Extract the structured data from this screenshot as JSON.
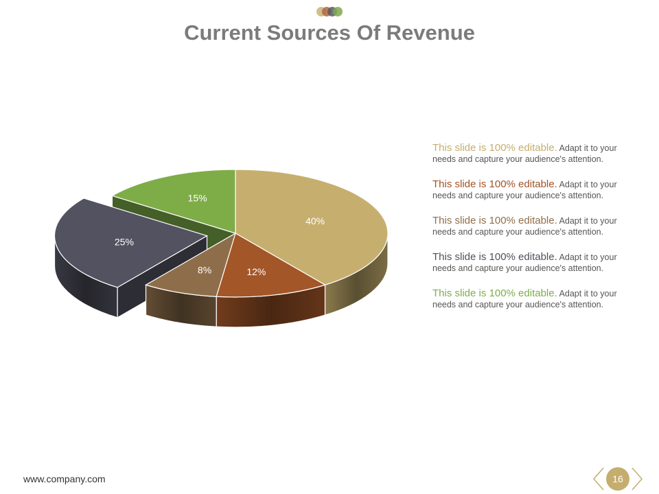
{
  "header": {
    "title": "Current Sources Of Revenue",
    "logo_dot_colors": [
      "#c9b27a",
      "#b0673e",
      "#5a5a66",
      "#7fa84b"
    ]
  },
  "chart_data": {
    "type": "pie",
    "title": "Current Sources Of Revenue",
    "labels": [
      "",
      "",
      "",
      "",
      ""
    ],
    "values": [
      40,
      12,
      8,
      25,
      15
    ],
    "value_labels": [
      "40%",
      "12%",
      "8%",
      "25%",
      "15%"
    ],
    "colors": [
      "#c6af6e",
      "#a35628",
      "#8e6e4a",
      "#525260",
      "#7ead48"
    ],
    "exploded": [
      false,
      false,
      false,
      true,
      false
    ],
    "legend": "none"
  },
  "notes": [
    {
      "lead": "This slide is 100% editable.",
      "text": " Adapt it to your needs and capture your audience's attention.",
      "color": "#c4ad6e"
    },
    {
      "lead": "This slide is 100% editable.",
      "text": " Adapt it to your needs and capture your audience's attention.",
      "color": "#a05226"
    },
    {
      "lead": "This slide is 100% editable.",
      "text": " Adapt it to your needs and capture your audience's attention.",
      "color": "#8e6e4a"
    },
    {
      "lead": "This slide is 100% editable.",
      "text": " Adapt it to your needs and capture your audience's attention.",
      "color": "#4f4f5c"
    },
    {
      "lead": "This slide is 100% editable.",
      "text": " Adapt it to your needs and capture your audience's attention.",
      "color": "#7ead48"
    }
  ],
  "footer": {
    "url": "www.company.com",
    "page_number": "16",
    "accent_color": "#c4ad6e"
  }
}
